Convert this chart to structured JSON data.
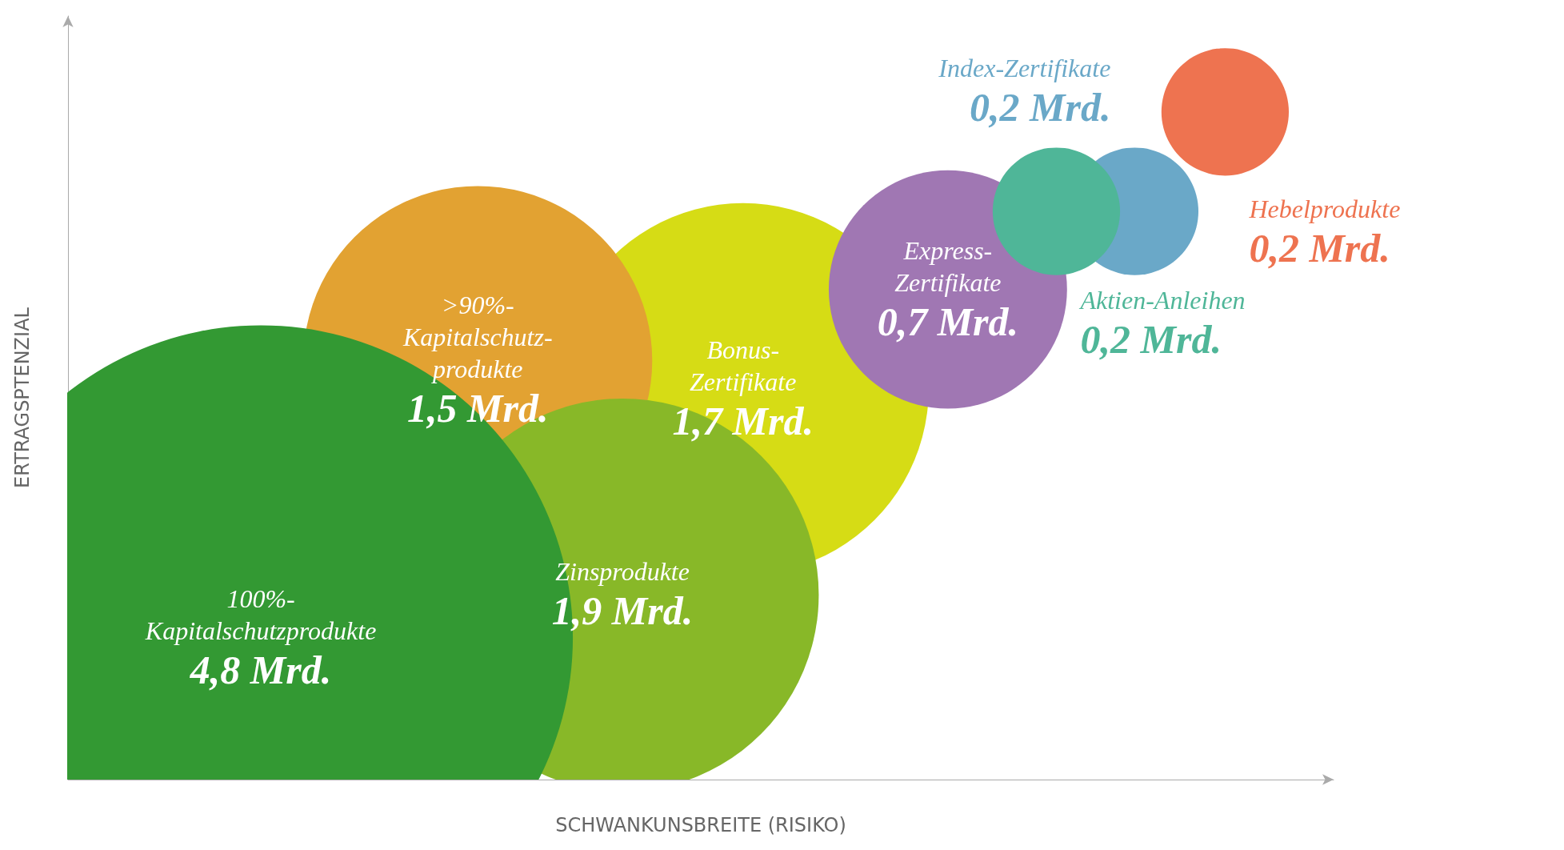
{
  "chart_data": {
    "type": "other",
    "xlabel": "SCHWANKUNSBREITE (RISIKO)",
    "ylabel": "ERTRAGSPTENZIAL",
    "categories": [
      "Bonus-\nZertifikate",
      ">90%-\nKapitalschutz-\nprodukte",
      "Zinsprodukte",
      "100%-\nKapitalschutzprodukte",
      "Express-\nZertifikate",
      "Index-Zertifikate",
      "Aktien-Anleihen",
      "Hebelprodukte"
    ],
    "values": [
      1.7,
      1.5,
      1.9,
      4.8,
      0.7,
      0.2,
      0.2,
      0.2
    ],
    "value_labels": [
      "1,7 Mrd.",
      "1,5 Mrd.",
      "1,9 Mrd.",
      "4,8 Mrd.",
      "0,7 Mrd.",
      "0,2 Mrd.",
      "0,2 Mrd.",
      "0,2 Mrd."
    ],
    "colors": [
      "#d6dc15",
      "#e2a232",
      "#88b828",
      "#339933",
      "#a077b3",
      "#6aa8c8",
      "#4fb698",
      "#ee7350"
    ]
  }
}
